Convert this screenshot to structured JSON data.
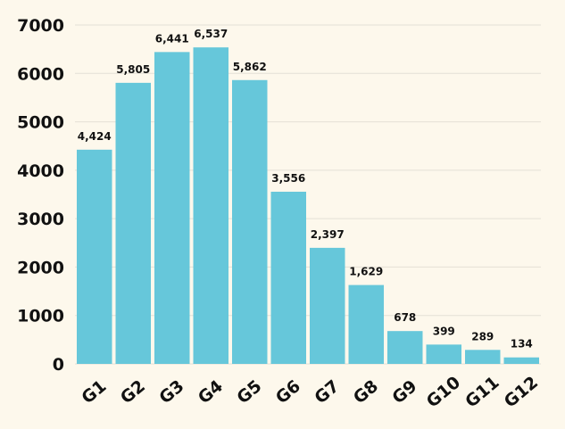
{
  "chart_data": {
    "type": "bar",
    "categories": [
      "G1",
      "G2",
      "G3",
      "G4",
      "G5",
      "G6",
      "G7",
      "G8",
      "G9",
      "G10",
      "G11",
      "G12"
    ],
    "values": [
      4424,
      5805,
      6441,
      6537,
      5862,
      3556,
      2397,
      1629,
      678,
      399,
      289,
      134
    ],
    "data_labels": [
      "4,424",
      "5,805",
      "6,441",
      "6,537",
      "5,862",
      "3,556",
      "2,397",
      "1,629",
      "678",
      "399",
      "289",
      "134"
    ],
    "yticks": [
      "0",
      "1000",
      "2000",
      "3000",
      "4000",
      "5000",
      "6000",
      "7000"
    ],
    "ylim": [
      0,
      7000
    ],
    "grid": true,
    "legend": "none",
    "bar_color": "#66c7da",
    "background": "#fdf8ec",
    "title": "",
    "xlabel": "",
    "ylabel": ""
  }
}
